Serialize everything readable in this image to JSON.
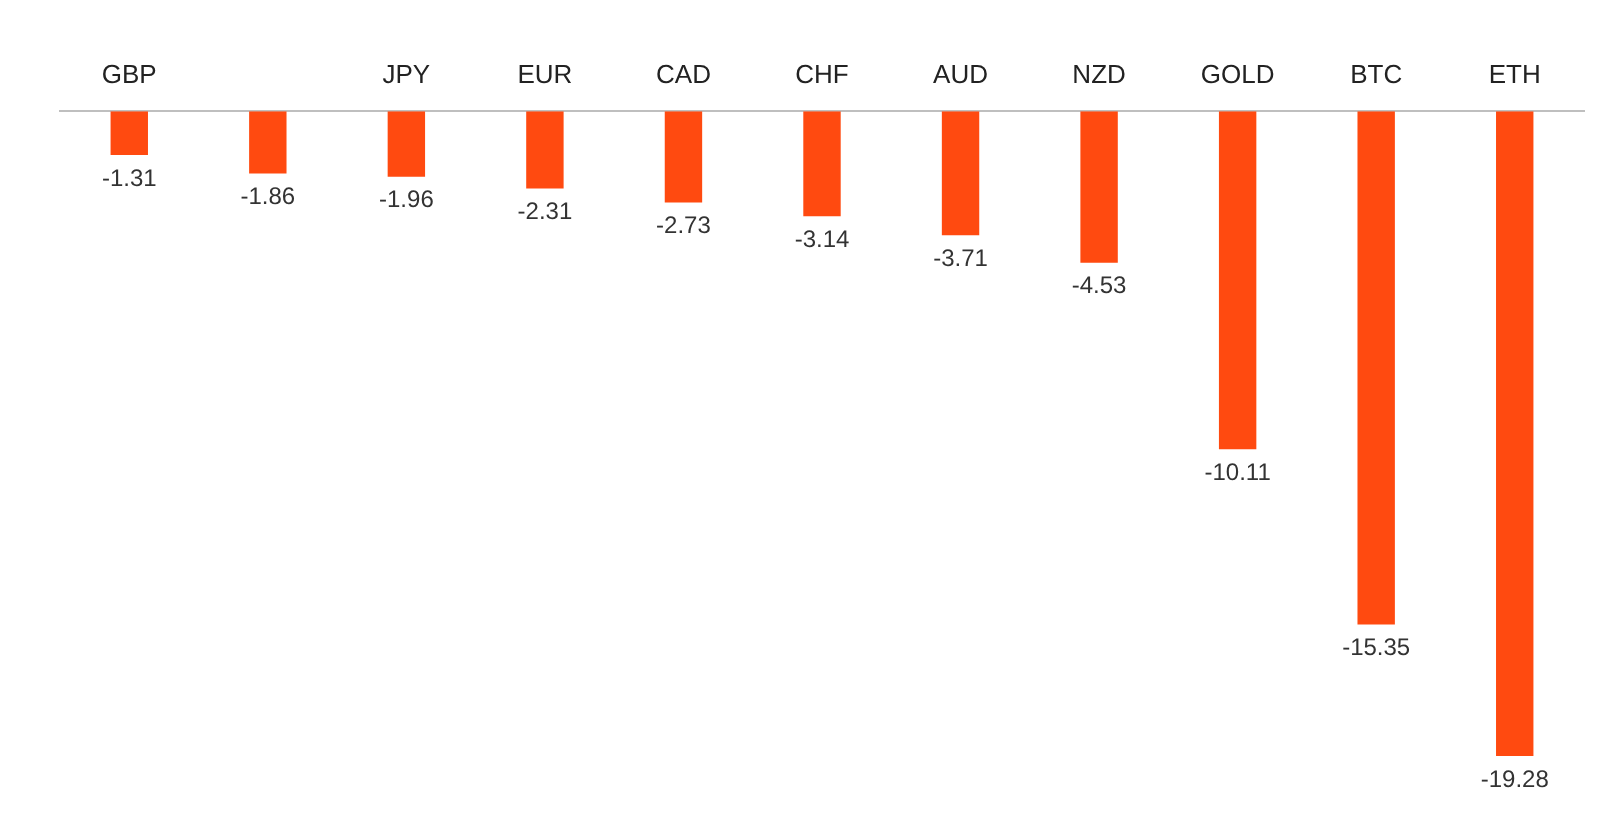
{
  "chart_data": {
    "type": "bar",
    "categories": [
      "GBP",
      null,
      "JPY",
      "EUR",
      "CAD",
      "CHF",
      "AUD",
      "NZD",
      "GOLD",
      "BTC",
      "ETH"
    ],
    "values": [
      -1.31,
      -1.86,
      -1.96,
      -2.31,
      -2.73,
      -3.14,
      -3.71,
      -4.53,
      -10.11,
      -15.35,
      -19.28
    ],
    "color": "#ff4a10",
    "data_labels": true,
    "grid": false,
    "legend": false
  }
}
